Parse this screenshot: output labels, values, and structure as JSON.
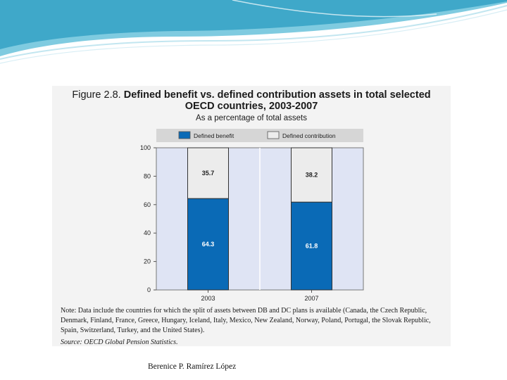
{
  "title": {
    "figure_number": "Figure 2.8.",
    "line1": "Defined benefit vs. defined contribution assets in total selected",
    "line2": "OECD countries, 2003-2007"
  },
  "subtitle": "As a percentage of total assets",
  "chart_data": {
    "type": "bar",
    "stacked": true,
    "categories": [
      "2003",
      "2007"
    ],
    "series": [
      {
        "name": "Defined benefit",
        "values": [
          64.3,
          61.8
        ],
        "color": "#0a6ab6"
      },
      {
        "name": "Defined contribution",
        "values": [
          35.7,
          38.2
        ],
        "color": "#ececec"
      }
    ],
    "ylim": [
      0,
      100
    ],
    "yticks": [
      0,
      20,
      40,
      60,
      80,
      100
    ],
    "legend_position": "top",
    "grid": false,
    "plot_background": "#dfe4f4",
    "data_labels": true
  },
  "note": "Note: Data include the countries for which the split of assets between DB and DC plans is available (Canada, the Czech Republic, Denmark, Finland, France, Greece, Hungary, Iceland, Italy, Mexico, New Zealand, Norway, Poland, Portugal, the Slovak Republic, Spain, Switzerland, Turkey, and the United States).",
  "source": {
    "label": "Source:",
    "text": "OECD Global Pension Statistics."
  },
  "footer": "Berenice P. Ramírez López",
  "theme": {
    "swoosh_colors": [
      "#3fa8c9",
      "#7fcbe0",
      "#c2e6f0"
    ]
  }
}
